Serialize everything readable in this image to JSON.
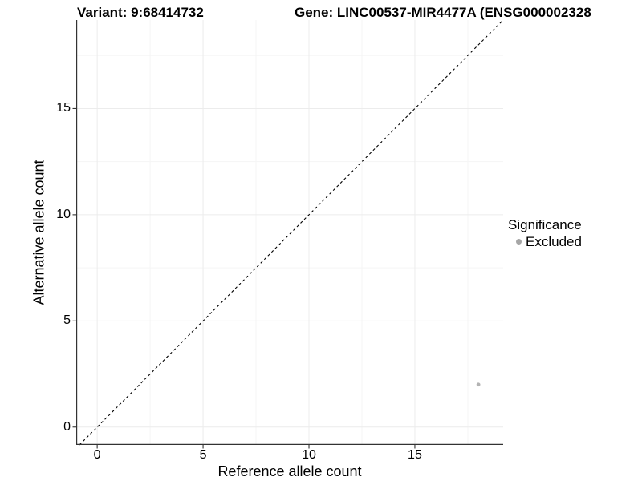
{
  "header": {
    "title_left": "Variant: 9:68414732",
    "title_right": "Gene: LINC00537-MIR4477A (ENSG000002328"
  },
  "axes": {
    "x_label": "Reference allele count",
    "y_label": "Alternative allele count"
  },
  "legend": {
    "title": "Significance",
    "items": [
      {
        "label": "Excluded",
        "marker": "circle",
        "color": "#a6a6a6"
      }
    ]
  },
  "colors": {
    "background": "#ffffff",
    "grid_major": "#ececec",
    "grid_minor": "#f5f5f5",
    "axis_line": "#333333",
    "tick_mark": "#333333",
    "reference_line": "#000000",
    "point": "#b3b3b3"
  },
  "chart_data": {
    "type": "scatter",
    "title": "Variant: 9:68414732",
    "subtitle": "Gene: LINC00537-MIR4477A (ENSG000002328",
    "xlabel": "Reference allele count",
    "ylabel": "Alternative allele count",
    "xlim": [
      -0.99,
      19.17
    ],
    "ylim": [
      -0.84,
      19.17
    ],
    "x_major_ticks": [
      0,
      5,
      10,
      15
    ],
    "y_major_ticks": [
      0,
      5,
      10,
      15
    ],
    "x_minor_ticks": [
      2.5,
      7.5,
      12.5,
      17.5
    ],
    "y_minor_ticks": [
      2.5,
      7.5,
      12.5,
      17.5
    ],
    "grid": "major+minor",
    "legend_position": "right",
    "reference_line": {
      "slope": 1,
      "intercept": 0,
      "style": "dashed",
      "meaning": "y = x identity line"
    },
    "series": [
      {
        "name": "Excluded",
        "color": "#b3b3b3",
        "point_radius": 2.4,
        "points": [
          {
            "x": 18,
            "y": 2
          }
        ]
      }
    ]
  }
}
